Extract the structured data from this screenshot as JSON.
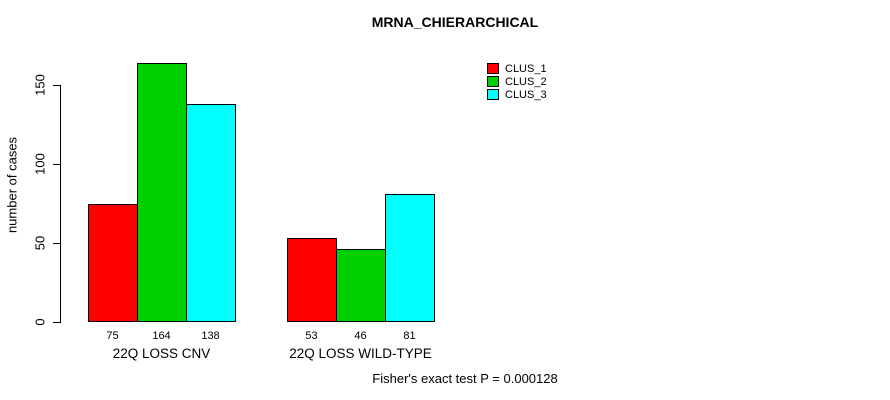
{
  "chart_data": {
    "type": "bar",
    "title": "MRNA_CHIERARCHICAL",
    "ylabel": "number of cases",
    "xlabel": "",
    "categories": [
      "22Q LOSS CNV",
      "22Q LOSS WILD-TYPE"
    ],
    "series": [
      {
        "name": "CLUS_1",
        "color": "#ff0000",
        "values": [
          75,
          53
        ]
      },
      {
        "name": "CLUS_2",
        "color": "#00d000",
        "values": [
          164,
          46
        ]
      },
      {
        "name": "CLUS_3",
        "color": "#00ffff",
        "values": [
          138,
          81
        ]
      }
    ],
    "bar_value_labels": [
      [
        "75",
        "164",
        "138"
      ],
      [
        "53",
        "46",
        "81"
      ]
    ],
    "yticks": [
      0,
      50,
      100,
      150
    ],
    "ylim": [
      0,
      170
    ],
    "grid": false,
    "legend_position": "top-right",
    "legend_entries": [
      "CLUS_1",
      "CLUS_2",
      "CLUS_3"
    ],
    "footer": "Fisher's exact test P = 0.000128"
  }
}
